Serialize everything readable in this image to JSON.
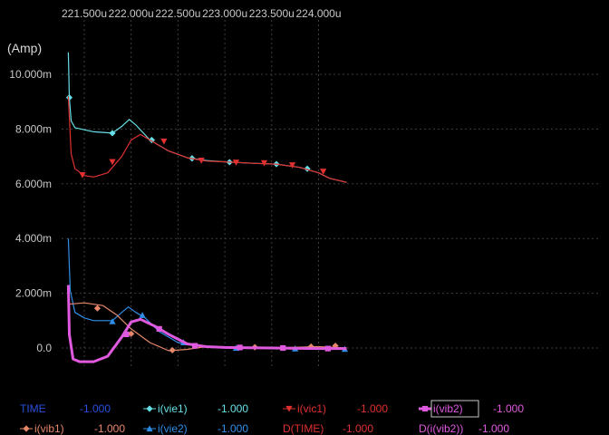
{
  "chart_data": {
    "type": "line",
    "title": "",
    "xlabel": "",
    "ylabel": "(Amp)",
    "x_ticks": [
      "221.500u",
      "222.000u",
      "222.500u",
      "223.000u",
      "223.500u",
      "224.000u"
    ],
    "y_ticks": [
      "10.000m",
      "8.000m",
      "6.000m",
      "4.000m",
      "2.000m",
      "0.0"
    ],
    "xlim": [
      221.4,
      224.3
    ],
    "ylim": [
      -0.6,
      11.0
    ],
    "grid": true,
    "legend_position": "bottom",
    "series": [
      {
        "name": "i(vie1)",
        "color": "#66e0e6",
        "marker": "diamond",
        "width": 1.2,
        "points": [
          [
            221.33,
            10.8
          ],
          [
            221.34,
            9.15
          ],
          [
            221.36,
            8.3
          ],
          [
            221.4,
            8.05
          ],
          [
            221.6,
            7.9
          ],
          [
            221.8,
            7.85
          ],
          [
            221.9,
            8.1
          ],
          [
            221.98,
            8.35
          ],
          [
            222.05,
            8.15
          ],
          [
            222.2,
            7.6
          ],
          [
            222.4,
            7.2
          ],
          [
            222.6,
            6.95
          ],
          [
            222.8,
            6.85
          ],
          [
            223.0,
            6.8
          ],
          [
            223.3,
            6.75
          ],
          [
            223.55,
            6.72
          ],
          [
            223.8,
            6.6
          ],
          [
            224.0,
            6.4
          ],
          [
            224.12,
            6.2
          ],
          [
            224.3,
            6.05
          ]
        ],
        "marks": [
          [
            221.34,
            9.15
          ],
          [
            221.8,
            7.85
          ],
          [
            222.22,
            7.6
          ],
          [
            222.65,
            6.93
          ],
          [
            223.05,
            6.79
          ],
          [
            223.55,
            6.72
          ],
          [
            223.88,
            6.55
          ]
        ]
      },
      {
        "name": "i(vic1)",
        "color": "#e03030",
        "marker": "triangle-down",
        "width": 1.2,
        "points": [
          [
            221.33,
            9.2
          ],
          [
            221.36,
            7.1
          ],
          [
            221.4,
            6.55
          ],
          [
            221.5,
            6.3
          ],
          [
            221.6,
            6.25
          ],
          [
            221.75,
            6.4
          ],
          [
            221.9,
            7.0
          ],
          [
            222.0,
            7.6
          ],
          [
            222.1,
            7.8
          ],
          [
            222.2,
            7.6
          ],
          [
            222.4,
            7.2
          ],
          [
            222.6,
            6.95
          ],
          [
            222.8,
            6.83
          ],
          [
            223.0,
            6.8
          ],
          [
            223.3,
            6.75
          ],
          [
            223.55,
            6.72
          ],
          [
            223.8,
            6.6
          ],
          [
            224.0,
            6.4
          ],
          [
            224.12,
            6.2
          ],
          [
            224.3,
            6.05
          ]
        ],
        "marks": [
          [
            221.48,
            6.32
          ],
          [
            221.8,
            6.8
          ],
          [
            222.35,
            7.55
          ],
          [
            222.75,
            6.85
          ],
          [
            223.12,
            6.78
          ],
          [
            223.42,
            6.76
          ],
          [
            223.72,
            6.68
          ],
          [
            224.05,
            6.45
          ]
        ]
      },
      {
        "name": "i(vie2)",
        "color": "#2f8fe8",
        "marker": "triangle-up",
        "width": 1.2,
        "points": [
          [
            221.33,
            4.0
          ],
          [
            221.35,
            2.1
          ],
          [
            221.4,
            1.3
          ],
          [
            221.5,
            1.1
          ],
          [
            221.6,
            1.0
          ],
          [
            221.8,
            1.0
          ],
          [
            221.9,
            1.3
          ],
          [
            221.97,
            1.5
          ],
          [
            222.05,
            1.3
          ],
          [
            222.15,
            1.1
          ],
          [
            222.3,
            0.6
          ],
          [
            222.5,
            0.2
          ],
          [
            222.75,
            0.05
          ],
          [
            223.0,
            0.0
          ],
          [
            224.3,
            -0.02
          ]
        ],
        "marks": [
          [
            221.8,
            0.97
          ],
          [
            222.12,
            1.2
          ],
          [
            222.56,
            0.2
          ],
          [
            223.12,
            0.0
          ],
          [
            223.75,
            -0.02
          ],
          [
            224.28,
            -0.04
          ]
        ]
      },
      {
        "name": "i(vib1)",
        "color": "#e6876c",
        "marker": "diamond",
        "width": 1.2,
        "points": [
          [
            221.33,
            1.6
          ],
          [
            221.5,
            1.65
          ],
          [
            221.7,
            1.55
          ],
          [
            221.85,
            1.2
          ],
          [
            222.0,
            0.7
          ],
          [
            222.2,
            0.2
          ],
          [
            222.4,
            -0.1
          ],
          [
            222.6,
            -0.05
          ],
          [
            222.8,
            0.05
          ],
          [
            223.0,
            0.02
          ],
          [
            223.5,
            0.0
          ],
          [
            224.0,
            0.05
          ],
          [
            224.3,
            0.0
          ]
        ],
        "marks": [
          [
            221.64,
            1.45
          ],
          [
            222.0,
            0.52
          ],
          [
            222.44,
            -0.08
          ],
          [
            223.32,
            0.03
          ],
          [
            223.92,
            0.05
          ],
          [
            224.18,
            0.08
          ]
        ]
      },
      {
        "name": "i(vib2)",
        "color": "#e05ae0",
        "marker": "square",
        "width": 3,
        "points": [
          [
            221.33,
            2.3
          ],
          [
            221.34,
            0.5
          ],
          [
            221.38,
            -0.4
          ],
          [
            221.45,
            -0.5
          ],
          [
            221.6,
            -0.5
          ],
          [
            221.75,
            -0.3
          ],
          [
            221.9,
            0.4
          ],
          [
            222.0,
            0.95
          ],
          [
            222.1,
            1.05
          ],
          [
            222.25,
            0.8
          ],
          [
            222.4,
            0.5
          ],
          [
            222.6,
            0.15
          ],
          [
            222.8,
            0.05
          ],
          [
            223.0,
            0.02
          ],
          [
            223.5,
            0.0
          ],
          [
            224.0,
            -0.02
          ],
          [
            224.3,
            -0.02
          ]
        ],
        "marks": [
          [
            221.95,
            0.5
          ],
          [
            222.3,
            0.7
          ],
          [
            222.68,
            0.08
          ],
          [
            223.16,
            0.02
          ],
          [
            223.62,
            0.0
          ],
          [
            224.1,
            -0.02
          ]
        ]
      }
    ]
  },
  "legend": {
    "row1": [
      {
        "marker": "",
        "label": "TIME",
        "value": "-1.000",
        "label_color": "#2b4fe0",
        "value_color": "#2b4fe0"
      },
      {
        "marker": "diamond",
        "label": "i(vie1)",
        "value": "-1.000",
        "label_color": "#66e0e6",
        "value_color": "#66e0e6"
      },
      {
        "marker": "triangle-down",
        "label": "i(vic1)",
        "value": "-1.000",
        "label_color": "#e03030",
        "value_color": "#e03030"
      },
      {
        "marker": "square",
        "label": "i(vib2)",
        "value": "-1.000",
        "label_color": "#e05ae0",
        "value_color": "#e05ae0"
      }
    ],
    "row2": [
      {
        "marker": "diamond",
        "label": "i(vib1)",
        "value": "-1.000",
        "label_color": "#e6876c",
        "value_color": "#e6876c"
      },
      {
        "marker": "triangle-up",
        "label": "i(vie2)",
        "value": "-1.000",
        "label_color": "#2f8fe8",
        "value_color": "#2f8fe8"
      },
      {
        "marker": "",
        "label": "D(TIME)",
        "value": "-1.000",
        "label_color": "#e03030",
        "value_color": "#e03030"
      },
      {
        "marker": "",
        "label": "D(i(vib2))",
        "value": "-1.000",
        "label_color": "#e05ae0",
        "value_color": "#e05ae0"
      }
    ]
  },
  "colors": {
    "background": "#000000",
    "grid": "#444444",
    "text": "#c8c8c8"
  }
}
